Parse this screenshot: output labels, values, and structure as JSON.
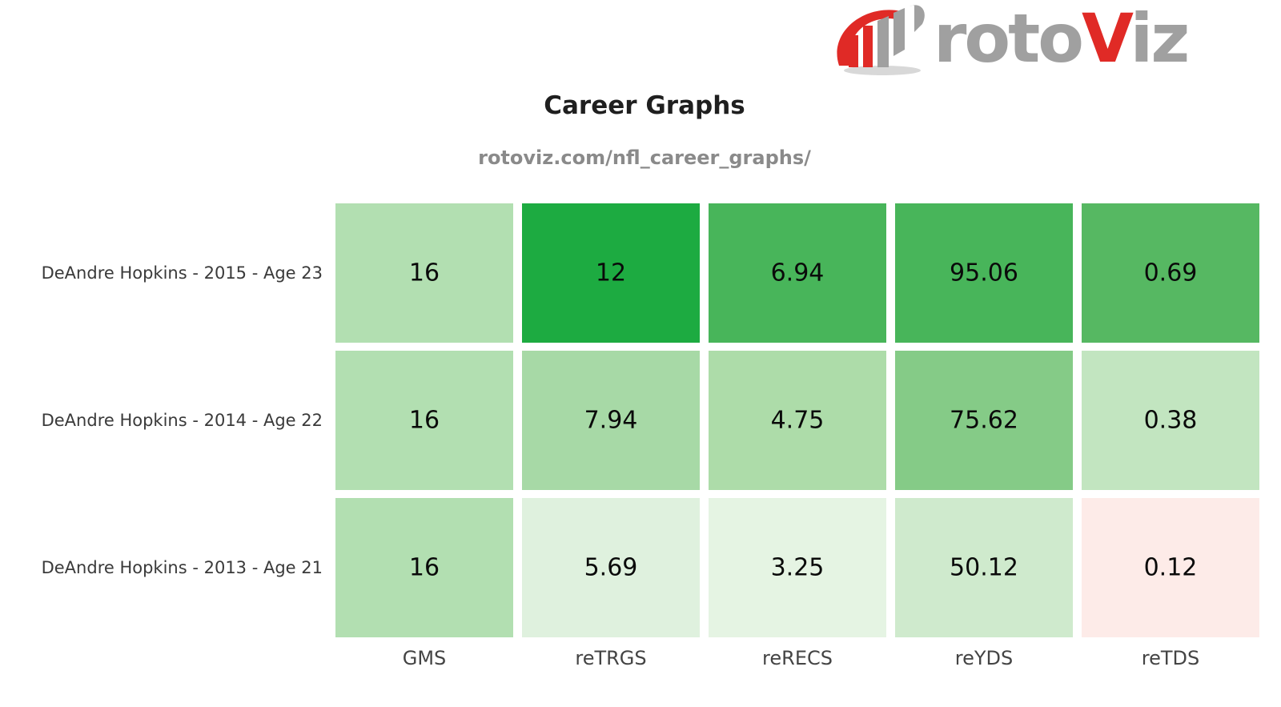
{
  "logo": {
    "text_gray": "roto",
    "text_red": "V",
    "text_gray2": "iz",
    "colors": {
      "red": "#e02a26",
      "gray": "#a0a0a0"
    }
  },
  "chart_data": {
    "type": "heatmap",
    "title": "Career Graphs",
    "subtitle": "rotoviz.com/nfl_career_graphs/",
    "rows": [
      "DeAndre Hopkins - 2015 - Age 23",
      "DeAndre Hopkins - 2014 - Age 22",
      "DeAndre Hopkins - 2013 - Age 21"
    ],
    "columns": [
      "GMS",
      "reTRGS",
      "reRECS",
      "reYDS",
      "reTDS"
    ],
    "values": [
      [
        16,
        12,
        6.94,
        95.06,
        0.69
      ],
      [
        16,
        7.94,
        4.75,
        75.62,
        0.38
      ],
      [
        16,
        5.69,
        3.25,
        50.12,
        0.12
      ]
    ],
    "value_labels": [
      [
        "16",
        "12",
        "6.94",
        "95.06",
        "0.69"
      ],
      [
        "16",
        "7.94",
        "4.75",
        "75.62",
        "0.38"
      ],
      [
        "16",
        "5.69",
        "3.25",
        "50.12",
        "0.12"
      ]
    ],
    "cell_colors": [
      [
        "#b2dfb1",
        "#1dab41",
        "#48b55a",
        "#48b55a",
        "#56b862"
      ],
      [
        "#b2dfb1",
        "#a7d9a6",
        "#addca9",
        "#85cb87",
        "#c2e5c0"
      ],
      [
        "#b2dfb1",
        "#dff1de",
        "#e5f4e3",
        "#cfeacd",
        "#fdebe8"
      ]
    ],
    "grid": false,
    "legend": "none"
  }
}
